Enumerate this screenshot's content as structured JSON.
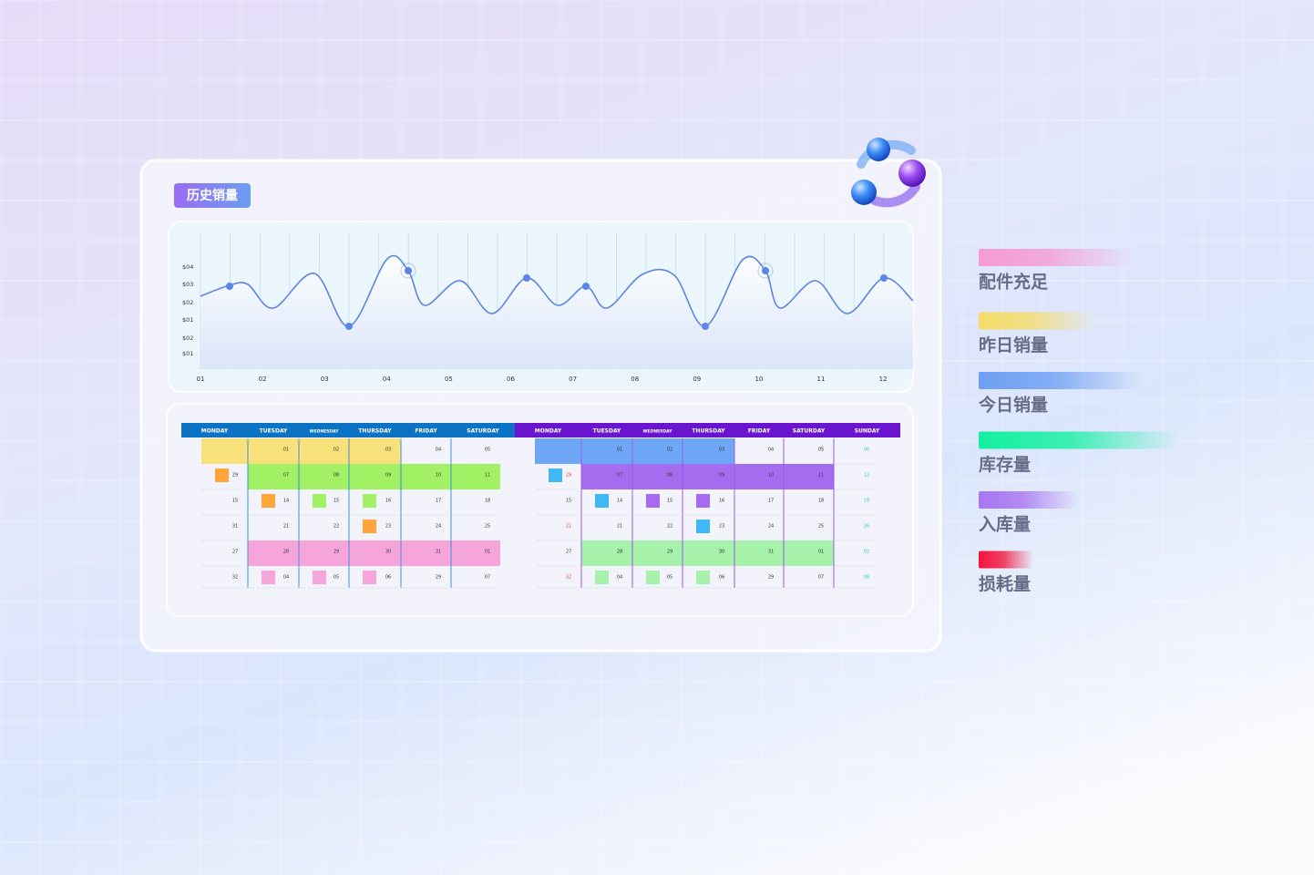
{
  "header": {
    "title": "历史销量"
  },
  "chart": {
    "y_labels": [
      "$04",
      "$03",
      "$02",
      "$01",
      "$02",
      "$01"
    ],
    "x_labels": [
      "01",
      "02",
      "03",
      "04",
      "05",
      "06",
      "07",
      "08",
      "09",
      "10",
      "11",
      "12"
    ]
  },
  "calendar": {
    "left": {
      "days": [
        "MONDAY",
        "TUESDAY",
        "WEDNESDAY",
        "THURSDAY",
        "FRIDAY",
        "SATURDAY"
      ],
      "color": "#0b72c4",
      "line": "#3f8fe0",
      "rows": [
        [
          {
            "fill": "#f8e07a"
          },
          {
            "day": "01",
            "fill": "#f8e07a"
          },
          {
            "day": "02",
            "fill": "#f8e07a"
          },
          {
            "day": "03",
            "fill": "#f8e07a"
          },
          {
            "day": "04"
          },
          {
            "day": "05"
          }
        ],
        [
          {
            "day": "29",
            "marker": "#ffa53a"
          },
          {
            "day": "07",
            "fill": "#a2f063"
          },
          {
            "day": "08",
            "fill": "#a2f063"
          },
          {
            "day": "09",
            "fill": "#a2f063"
          },
          {
            "day": "10",
            "fill": "#a2f063"
          },
          {
            "day": "11",
            "fill": "#a2f063"
          }
        ],
        [
          {
            "day": "15"
          },
          {
            "day": "14",
            "marker": "#ffa53a"
          },
          {
            "day": "15",
            "marker": "#a2f063"
          },
          {
            "day": "16",
            "marker": "#a2f063"
          },
          {
            "day": "17"
          },
          {
            "day": "18"
          }
        ],
        [
          {
            "day": "31"
          },
          {
            "day": "21"
          },
          {
            "day": "22"
          },
          {
            "day": "23",
            "marker": "#ffa53a"
          },
          {
            "day": "24"
          },
          {
            "day": "25"
          }
        ],
        [
          {
            "day": "27"
          },
          {
            "day": "28",
            "fill": "#f6a5da"
          },
          {
            "day": "29",
            "fill": "#f6a5da"
          },
          {
            "day": "30",
            "fill": "#f6a5da"
          },
          {
            "day": "31",
            "fill": "#f6a5da"
          },
          {
            "day": "01",
            "fill": "#f6a5da"
          }
        ],
        [
          {
            "day": "32"
          },
          {
            "day": "04",
            "marker": "#f6a5da"
          },
          {
            "day": "05",
            "marker": "#f6a5da"
          },
          {
            "day": "06",
            "marker": "#f6a5da"
          },
          {
            "day": "29"
          },
          {
            "day": "07"
          }
        ]
      ]
    },
    "right": {
      "days": [
        "MONDAY",
        "TUESDAY",
        "WEDNESDAY",
        "THURSDAY",
        "FRIDAY",
        "SATURDAY",
        "SUNDAY"
      ],
      "color": "#6a14d0",
      "line": "#9a5ae8",
      "rows": [
        [
          {
            "fill": "#6ea7f5"
          },
          {
            "day": "01",
            "fill": "#6ea7f5"
          },
          {
            "day": "02",
            "fill": "#6ea7f5"
          },
          {
            "day": "03",
            "fill": "#6ea7f5"
          },
          {
            "day": "04"
          },
          {
            "day": "05"
          },
          {
            "day": "06"
          }
        ],
        [
          {
            "day": "29",
            "marker": "#3fb8f5"
          },
          {
            "day": "07",
            "fill": "#a66cf0"
          },
          {
            "day": "08",
            "fill": "#a66cf0"
          },
          {
            "day": "09",
            "fill": "#a66cf0"
          },
          {
            "day": "10",
            "fill": "#a66cf0"
          },
          {
            "day": "11",
            "fill": "#a66cf0"
          },
          {
            "day": "12"
          }
        ],
        [
          {
            "day": "15"
          },
          {
            "day": "14",
            "marker": "#3fb8f5"
          },
          {
            "day": "15",
            "marker": "#a66cf0"
          },
          {
            "day": "16",
            "marker": "#a66cf0"
          },
          {
            "day": "17"
          },
          {
            "day": "18"
          },
          {
            "day": "19"
          }
        ],
        [
          {
            "day": "21"
          },
          {
            "day": "21"
          },
          {
            "day": "22"
          },
          {
            "day": "23",
            "marker": "#3fb8f5"
          },
          {
            "day": "24"
          },
          {
            "day": "25"
          },
          {
            "day": "26"
          }
        ],
        [
          {
            "day": "27"
          },
          {
            "day": "28",
            "fill": "#a6f2aa"
          },
          {
            "day": "29",
            "fill": "#a6f2aa"
          },
          {
            "day": "30",
            "fill": "#a6f2aa"
          },
          {
            "day": "31",
            "fill": "#a6f2aa"
          },
          {
            "day": "01",
            "fill": "#a6f2aa"
          },
          {
            "day": "02"
          }
        ],
        [
          {
            "day": "32"
          },
          {
            "day": "04",
            "marker": "#a6f2aa"
          },
          {
            "day": "05",
            "marker": "#a6f2aa"
          },
          {
            "day": "06",
            "marker": "#a6f2aa"
          },
          {
            "day": "29"
          },
          {
            "day": "07"
          },
          {
            "day": "08"
          }
        ]
      ]
    }
  },
  "legend": [
    {
      "label": "配件充足",
      "color": "#f59ad6"
    },
    {
      "label": "昨日销量",
      "color": "#f5dc6a"
    },
    {
      "label": "今日销量",
      "color": "#6d9ff2"
    },
    {
      "label": "库存量",
      "color": "#13f0a0"
    },
    {
      "label": "入库量",
      "color": "#a874f0"
    },
    {
      "label": "损耗量",
      "color": "#f5143c"
    }
  ]
}
